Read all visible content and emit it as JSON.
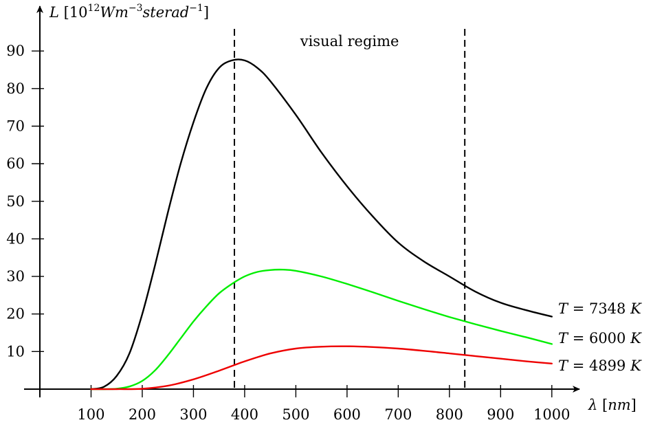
{
  "chart_data": {
    "type": "line",
    "title": "",
    "ylabel_parts": {
      "sym": "L",
      "open": " [10",
      "exp1": "12",
      "wm": "Wm",
      "exp2": "−3",
      "ster": "sterad",
      "exp3": "−1",
      "close": "]"
    },
    "xlabel_parts": {
      "sym": "λ",
      "open": " [",
      "unit": "nm",
      "close": "]"
    },
    "xlim": [
      0,
      1000
    ],
    "ylim": [
      0,
      90
    ],
    "xticks": [
      100,
      200,
      300,
      400,
      500,
      600,
      700,
      800,
      900,
      1000
    ],
    "yticks": [
      10,
      20,
      30,
      40,
      50,
      60,
      70,
      80,
      90
    ],
    "grid": false,
    "visual_regime": {
      "label": "visual regime",
      "x_start": 380,
      "x_end": 830
    },
    "series": [
      {
        "name": "T = 7348 K",
        "label": {
          "T": "T",
          "eq": " = 7348 ",
          "K": "K"
        },
        "color": "#000000",
        "x": [
          100,
          125,
          150,
          175,
          200,
          225,
          250,
          275,
          300,
          325,
          350,
          375,
          400,
          425,
          450,
          500,
          550,
          600,
          650,
          700,
          750,
          800,
          850,
          900,
          950,
          1000
        ],
        "y": [
          0,
          0.6,
          3.5,
          9.5,
          20,
          33,
          47,
          60,
          71,
          80,
          85.5,
          87.5,
          87.5,
          85.5,
          82,
          73,
          63,
          54,
          46,
          39,
          34,
          30,
          26,
          23,
          21,
          19.3
        ]
      },
      {
        "name": "T = 6000 K",
        "label": {
          "T": "T",
          "eq": " = 6000 ",
          "K": "K"
        },
        "color": "#00ee00",
        "x": [
          100,
          125,
          150,
          175,
          200,
          225,
          250,
          275,
          300,
          325,
          350,
          375,
          400,
          425,
          450,
          475,
          500,
          550,
          600,
          650,
          700,
          750,
          800,
          850,
          900,
          950,
          1000
        ],
        "y": [
          0,
          0,
          0.1,
          0.7,
          2.2,
          5,
          9,
          13.5,
          18,
          22,
          25.5,
          28,
          30,
          31.2,
          31.7,
          31.8,
          31.5,
          30,
          28,
          25.8,
          23.5,
          21.3,
          19.2,
          17.3,
          15.5,
          13.8,
          12
        ]
      },
      {
        "name": "T = 4899 K",
        "label": {
          "T": "T",
          "eq": " = 4899 ",
          "K": "K"
        },
        "color": "#ee0000",
        "x": [
          100,
          150,
          200,
          250,
          300,
          350,
          400,
          450,
          500,
          550,
          600,
          650,
          700,
          750,
          800,
          850,
          900,
          950,
          1000
        ],
        "y": [
          0,
          0,
          0.1,
          0.9,
          2.6,
          4.9,
          7.4,
          9.5,
          10.8,
          11.3,
          11.4,
          11.2,
          10.8,
          10.2,
          9.5,
          8.8,
          8.1,
          7.4,
          6.8
        ]
      }
    ]
  }
}
